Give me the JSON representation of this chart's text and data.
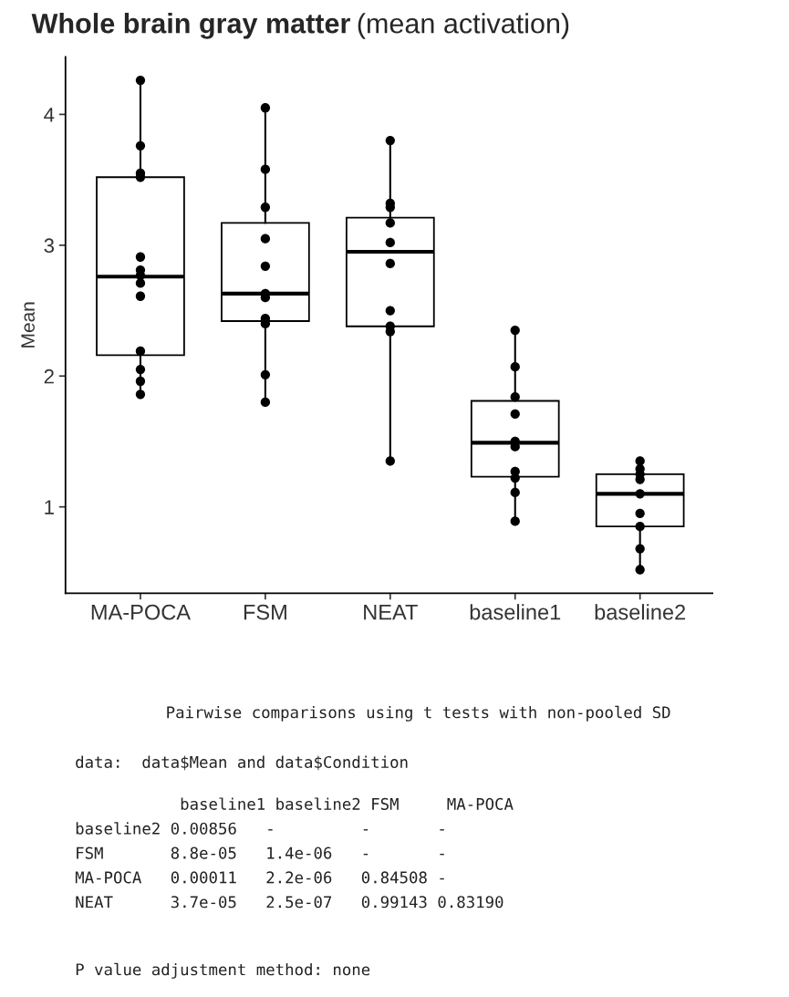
{
  "chart_data": {
    "type": "box",
    "title": "Whole brain gray matter",
    "subtitle": "(mean activation)",
    "ylabel": "Mean",
    "categories": [
      "MA-POCA",
      "FSM",
      "NEAT",
      "baseline1",
      "baseline2"
    ],
    "ylim": [
      0.34,
      4.44
    ],
    "yticks": [
      1,
      2,
      3,
      4
    ],
    "grid": false,
    "legend": false,
    "boxes": [
      {
        "low": 1.86,
        "q1": 2.16,
        "median": 2.76,
        "q3": 3.52,
        "high": 4.26
      },
      {
        "low": 1.8,
        "q1": 2.42,
        "median": 2.63,
        "q3": 3.17,
        "high": 4.05
      },
      {
        "low": 1.35,
        "q1": 2.38,
        "median": 2.95,
        "q3": 3.21,
        "high": 3.8
      },
      {
        "low": 0.89,
        "q1": 1.23,
        "median": 1.49,
        "q3": 1.81,
        "high": 2.35
      },
      {
        "low": 0.52,
        "q1": 0.85,
        "median": 1.1,
        "q3": 1.25,
        "high": 1.35
      }
    ],
    "series": [
      {
        "type": "scatter",
        "color": "#000000",
        "marker": "circle",
        "x": [
          "MA-POCA",
          "MA-POCA",
          "MA-POCA",
          "MA-POCA",
          "MA-POCA",
          "MA-POCA",
          "MA-POCA",
          "MA-POCA",
          "MA-POCA",
          "MA-POCA",
          "MA-POCA",
          "MA-POCA",
          "MA-POCA",
          "FSM",
          "FSM",
          "FSM",
          "FSM",
          "FSM",
          "FSM",
          "FSM",
          "FSM",
          "FSM",
          "FSM",
          "FSM",
          "NEAT",
          "NEAT",
          "NEAT",
          "NEAT",
          "NEAT",
          "NEAT",
          "NEAT",
          "NEAT",
          "NEAT",
          "NEAT",
          "baseline1",
          "baseline1",
          "baseline1",
          "baseline1",
          "baseline1",
          "baseline1",
          "baseline1",
          "baseline1",
          "baseline1",
          "baseline1",
          "baseline2",
          "baseline2",
          "baseline2",
          "baseline2",
          "baseline2",
          "baseline2",
          "baseline2",
          "baseline2",
          "baseline2"
        ],
        "values": [
          4.26,
          3.76,
          3.55,
          3.52,
          2.91,
          2.81,
          2.77,
          2.71,
          2.61,
          2.19,
          2.05,
          1.96,
          1.86,
          4.05,
          3.58,
          3.29,
          3.05,
          2.84,
          2.63,
          2.6,
          2.44,
          2.4,
          2.01,
          1.8,
          3.8,
          3.32,
          3.29,
          3.17,
          3.02,
          2.86,
          2.5,
          2.38,
          2.34,
          1.35,
          2.35,
          2.07,
          1.84,
          1.71,
          1.5,
          1.46,
          1.27,
          1.22,
          1.11,
          0.89,
          1.35,
          1.29,
          1.25,
          1.21,
          1.1,
          0.95,
          0.85,
          0.68,
          0.52
        ]
      }
    ],
    "annotations": [
      "Pairwise comparisons using t tests with non-pooled SD",
      "data:  data$Mean and data$Condition",
      "           baseline1 baseline2 FSM     MA-POCA\nbaseline2 0.00856   -         -       -      \nFSM       8.8e-05   1.4e-06   -       -      \nMA-POCA   0.00011   2.2e-06   0.84508 -      \nNEAT      3.7e-05   2.5e-07   0.99143 0.83190",
      "P value adjustment method: none"
    ]
  }
}
